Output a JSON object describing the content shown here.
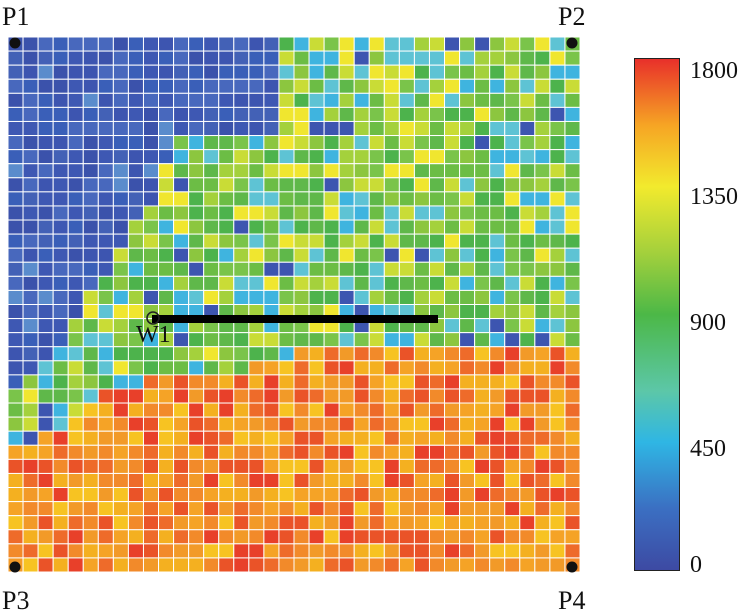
{
  "corners": {
    "p1": "P1",
    "p2": "P2",
    "p3": "P3",
    "p4": "P4"
  },
  "well_label": "W1",
  "chart_data": {
    "type": "heatmap",
    "title": "",
    "colorbar": {
      "min": 0,
      "max": 1800,
      "ticks": [
        "1800",
        "1350",
        "900",
        "450",
        "0"
      ],
      "colors": [
        "#3d4aa3",
        "#2fb6e4",
        "#4cb847",
        "#f2ea2d",
        "#f6a524",
        "#e8302a"
      ]
    },
    "grid": {
      "rows": 38,
      "cols": 38
    },
    "regions": [
      {
        "name": "upper-left zone",
        "value_range": [
          0,
          300
        ],
        "color": "#3d55b0"
      },
      {
        "name": "middle zone",
        "value_range": [
          450,
          1350
        ],
        "color": "#6cbd45"
      },
      {
        "name": "bottom zone",
        "value_range": [
          1350,
          1800
        ],
        "color": "#f28a2a"
      }
    ],
    "well_trajectory": {
      "label": "W1",
      "orientation": "horizontal"
    },
    "corner_points": [
      "P1",
      "P2",
      "P3",
      "P4"
    ]
  }
}
